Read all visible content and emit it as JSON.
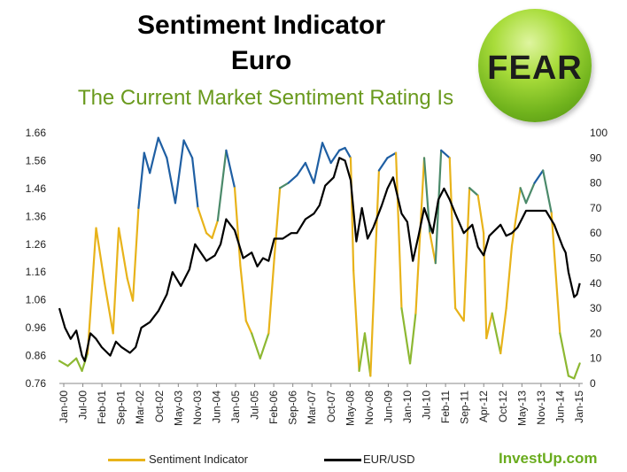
{
  "title_line1": "Sentiment Indicator",
  "title_line2": "Euro",
  "subtitle": "The Current Market Sentiment Rating Is",
  "rating_badge": {
    "label": "FEAR",
    "color": "#8cc63f"
  },
  "brand": "InvestUp.com",
  "colors": {
    "sentiment_low": "#e8b31a",
    "sentiment_mid": "#8db832",
    "sentiment_high": "#1f5fa3",
    "eurusd": "#000000"
  },
  "chart_data": {
    "type": "line",
    "title": "Sentiment Indicator Euro",
    "x_tick_labels": [
      "Jan-00",
      "Jul-00",
      "Feb-01",
      "Sep-01",
      "Mar-02",
      "Oct-02",
      "May-03",
      "Nov-03",
      "Jun-04",
      "Jan-05",
      "Jul-05",
      "Feb-06",
      "Sep-06",
      "Mar-07",
      "Oct-07",
      "May-08",
      "Nov-08",
      "Jun-09",
      "Jan-10",
      "Jul-10",
      "Feb-11",
      "Sep-11",
      "Apr-12",
      "Oct-12",
      "May-13",
      "Nov-13",
      "Jun-14",
      "Jan-15"
    ],
    "y_left_ticks": [
      "0.76",
      "0.86",
      "0.96",
      "1.06",
      "1.16",
      "1.26",
      "1.36",
      "1.46",
      "1.56",
      "1.66"
    ],
    "y_left_range": [
      0.76,
      1.66
    ],
    "y_right_ticks": [
      "0",
      "10",
      "20",
      "30",
      "40",
      "50",
      "60",
      "70",
      "80",
      "90",
      "100"
    ],
    "y_right_range": [
      0,
      100
    ],
    "legend_position": "bottom",
    "series": [
      {
        "name": "Sentiment Indicator",
        "axis": "right",
        "points": [
          [
            "2000-01",
            9
          ],
          [
            "2000-04",
            7
          ],
          [
            "2000-07",
            10
          ],
          [
            "2000-09",
            5
          ],
          [
            "2000-11",
            12
          ],
          [
            "2001-02",
            62
          ],
          [
            "2001-05",
            40
          ],
          [
            "2001-08",
            20
          ],
          [
            "2001-10",
            62
          ],
          [
            "2002-01",
            42
          ],
          [
            "2002-03",
            33
          ],
          [
            "2002-05",
            70
          ],
          [
            "2002-07",
            92
          ],
          [
            "2002-09",
            84
          ],
          [
            "2002-12",
            98
          ],
          [
            "2003-03",
            90
          ],
          [
            "2003-06",
            72
          ],
          [
            "2003-09",
            97
          ],
          [
            "2003-12",
            90
          ],
          [
            "2004-02",
            70
          ],
          [
            "2004-05",
            60
          ],
          [
            "2004-07",
            58
          ],
          [
            "2004-09",
            65
          ],
          [
            "2004-12",
            93
          ],
          [
            "2005-03",
            78
          ],
          [
            "2005-05",
            47
          ],
          [
            "2005-07",
            25
          ],
          [
            "2005-09",
            20
          ],
          [
            "2005-12",
            10
          ],
          [
            "2006-03",
            20
          ],
          [
            "2006-05",
            50
          ],
          [
            "2006-07",
            78
          ],
          [
            "2006-10",
            80
          ],
          [
            "2007-01",
            83
          ],
          [
            "2007-04",
            88
          ],
          [
            "2007-07",
            80
          ],
          [
            "2007-10",
            96
          ],
          [
            "2008-01",
            88
          ],
          [
            "2008-04",
            93
          ],
          [
            "2008-06",
            94
          ],
          [
            "2008-08",
            90
          ],
          [
            "2008-09",
            45
          ],
          [
            "2008-11",
            5
          ],
          [
            "2009-01",
            20
          ],
          [
            "2009-03",
            3
          ],
          [
            "2009-06",
            85
          ],
          [
            "2009-09",
            90
          ],
          [
            "2009-12",
            92
          ],
          [
            "2010-02",
            30
          ],
          [
            "2010-05",
            8
          ],
          [
            "2010-07",
            28
          ],
          [
            "2010-10",
            90
          ],
          [
            "2010-12",
            60
          ],
          [
            "2011-02",
            48
          ],
          [
            "2011-04",
            93
          ],
          [
            "2011-07",
            90
          ],
          [
            "2011-09",
            30
          ],
          [
            "2011-12",
            25
          ],
          [
            "2012-02",
            78
          ],
          [
            "2012-05",
            75
          ],
          [
            "2012-07",
            60
          ],
          [
            "2012-08",
            18
          ],
          [
            "2012-10",
            28
          ],
          [
            "2013-01",
            12
          ],
          [
            "2013-03",
            30
          ],
          [
            "2013-05",
            55
          ],
          [
            "2013-08",
            78
          ],
          [
            "2013-10",
            72
          ],
          [
            "2014-01",
            80
          ],
          [
            "2014-04",
            85
          ],
          [
            "2014-07",
            68
          ],
          [
            "2014-10",
            20
          ],
          [
            "2015-01",
            3
          ],
          [
            "2015-03",
            2
          ],
          [
            "2015-05",
            8
          ]
        ]
      },
      {
        "name": "EUR/USD",
        "axis": "left",
        "points": [
          [
            "2000-01",
            1.03
          ],
          [
            "2000-03",
            0.96
          ],
          [
            "2000-05",
            0.92
          ],
          [
            "2000-07",
            0.95
          ],
          [
            "2000-09",
            0.86
          ],
          [
            "2000-10",
            0.84
          ],
          [
            "2000-12",
            0.94
          ],
          [
            "2001-02",
            0.92
          ],
          [
            "2001-04",
            0.89
          ],
          [
            "2001-07",
            0.86
          ],
          [
            "2001-09",
            0.91
          ],
          [
            "2001-11",
            0.89
          ],
          [
            "2002-02",
            0.87
          ],
          [
            "2002-04",
            0.89
          ],
          [
            "2002-06",
            0.96
          ],
          [
            "2002-09",
            0.98
          ],
          [
            "2002-12",
            1.02
          ],
          [
            "2003-03",
            1.08
          ],
          [
            "2003-05",
            1.16
          ],
          [
            "2003-08",
            1.11
          ],
          [
            "2003-11",
            1.17
          ],
          [
            "2004-01",
            1.26
          ],
          [
            "2004-05",
            1.2
          ],
          [
            "2004-08",
            1.22
          ],
          [
            "2004-10",
            1.26
          ],
          [
            "2004-12",
            1.35
          ],
          [
            "2005-03",
            1.31
          ],
          [
            "2005-06",
            1.21
          ],
          [
            "2005-09",
            1.23
          ],
          [
            "2005-11",
            1.18
          ],
          [
            "2006-01",
            1.21
          ],
          [
            "2006-03",
            1.2
          ],
          [
            "2006-05",
            1.28
          ],
          [
            "2006-08",
            1.28
          ],
          [
            "2006-11",
            1.3
          ],
          [
            "2007-01",
            1.3
          ],
          [
            "2007-04",
            1.35
          ],
          [
            "2007-07",
            1.37
          ],
          [
            "2007-09",
            1.4
          ],
          [
            "2007-11",
            1.47
          ],
          [
            "2008-02",
            1.5
          ],
          [
            "2008-04",
            1.57
          ],
          [
            "2008-06",
            1.56
          ],
          [
            "2008-08",
            1.49
          ],
          [
            "2008-10",
            1.27
          ],
          [
            "2008-12",
            1.39
          ],
          [
            "2009-02",
            1.28
          ],
          [
            "2009-04",
            1.32
          ],
          [
            "2009-07",
            1.4
          ],
          [
            "2009-09",
            1.46
          ],
          [
            "2009-11",
            1.5
          ],
          [
            "2010-02",
            1.37
          ],
          [
            "2010-04",
            1.34
          ],
          [
            "2010-06",
            1.2
          ],
          [
            "2010-08",
            1.29
          ],
          [
            "2010-10",
            1.39
          ],
          [
            "2011-01",
            1.3
          ],
          [
            "2011-03",
            1.42
          ],
          [
            "2011-05",
            1.46
          ],
          [
            "2011-07",
            1.42
          ],
          [
            "2011-09",
            1.37
          ],
          [
            "2011-12",
            1.3
          ],
          [
            "2012-03",
            1.33
          ],
          [
            "2012-05",
            1.25
          ],
          [
            "2012-07",
            1.22
          ],
          [
            "2012-09",
            1.29
          ],
          [
            "2013-01",
            1.33
          ],
          [
            "2013-03",
            1.29
          ],
          [
            "2013-05",
            1.3
          ],
          [
            "2013-07",
            1.32
          ],
          [
            "2013-10",
            1.38
          ],
          [
            "2013-12",
            1.38
          ],
          [
            "2014-03",
            1.38
          ],
          [
            "2014-05",
            1.38
          ],
          [
            "2014-08",
            1.33
          ],
          [
            "2014-11",
            1.25
          ],
          [
            "2014-12",
            1.23
          ],
          [
            "2015-01",
            1.16
          ],
          [
            "2015-03",
            1.07
          ],
          [
            "2015-04",
            1.08
          ],
          [
            "2015-05",
            1.12
          ]
        ]
      }
    ]
  }
}
